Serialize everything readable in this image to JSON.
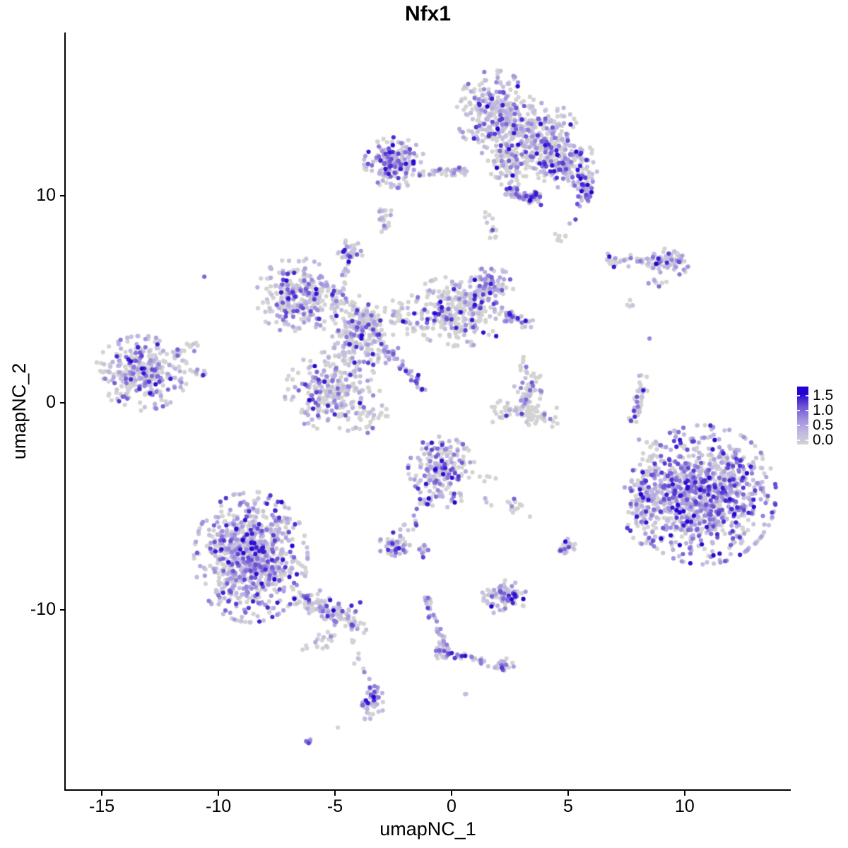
{
  "title": "Nfx1",
  "axes": {
    "x": {
      "label": "umapNC_1",
      "tick_labels": [
        "-15",
        "-10",
        "-5",
        "0",
        "5",
        "10"
      ],
      "tick_values": [
        -15,
        -10,
        -5,
        0,
        5,
        10
      ],
      "range": [
        -16.55,
        14.52
      ]
    },
    "y": {
      "label": "umapNC_2",
      "tick_labels": [
        "10",
        "0",
        "-10"
      ],
      "tick_values": [
        10,
        0,
        -10
      ],
      "range": [
        -18.7,
        17.85
      ]
    }
  },
  "legend": {
    "tick_labels": [
      "1.5",
      "1.0",
      "0.5",
      "0.0"
    ],
    "tick_values": [
      1.5,
      1.0,
      0.5,
      0.0
    ],
    "low_color": "#D3D3D3",
    "high_color": "#2303D3"
  },
  "colors": {
    "background": "#FFFFFF",
    "axis": "#000000",
    "text": "#000000",
    "gradient_stops": [
      {
        "t": 0.0,
        "hex": "#D3D3D3"
      },
      {
        "t": 0.25,
        "hex": "#BFB7E2"
      },
      {
        "t": 0.5,
        "hex": "#9F8EDD"
      },
      {
        "t": 0.75,
        "hex": "#6F52D3"
      },
      {
        "t": 1.0,
        "hex": "#2303D3"
      }
    ]
  },
  "chart_data": {
    "type": "scatter",
    "title": "Nfx1",
    "xlabel": "umapNC_1",
    "ylabel": "umapNC_2",
    "xlim": [
      -16.55,
      14.52
    ],
    "ylim": [
      -18.7,
      17.85
    ],
    "legend_title_values": [
      1.5,
      1.0,
      0.5,
      0.0
    ],
    "expression_max": 1.6,
    "point_radius_px": 3.1,
    "seed": 1337,
    "clusters": [
      {
        "id": "top-main-upper",
        "kind": "blob",
        "n": 270,
        "cx": 1.85,
        "cy": 14.0,
        "rx": 1.36,
        "ry": 1.71,
        "p0": 0.4,
        "hot": 0.45
      },
      {
        "id": "top-main-mid",
        "kind": "blob",
        "n": 270,
        "cx": 3.67,
        "cy": 12.8,
        "rx": 1.52,
        "ry": 1.54,
        "p0": 0.45,
        "hot": 0.45
      },
      {
        "id": "top-main-right",
        "kind": "blob",
        "n": 170,
        "cx": 4.88,
        "cy": 11.6,
        "rx": 1.21,
        "ry": 1.02,
        "p0": 0.4,
        "hot": 0.5
      },
      {
        "id": "top-main-tongue",
        "kind": "blob",
        "n": 90,
        "cx": 2.45,
        "cy": 11.43,
        "rx": 0.76,
        "ry": 1.09,
        "p0": 0.55,
        "hot": 0.38
      },
      {
        "id": "top-trail-down",
        "kind": "streak",
        "n": 12,
        "x1": 1.55,
        "y1": 9.2,
        "x2": 1.85,
        "y2": 7.9,
        "w": 0.25,
        "p0": 0.6,
        "hot": 0.38
      },
      {
        "id": "top-right-edge",
        "kind": "blob",
        "n": 45,
        "cx": 5.73,
        "cy": 10.31,
        "rx": 0.45,
        "ry": 0.75,
        "p0": 0.3,
        "hot": 0.5
      },
      {
        "id": "funnel-streak",
        "kind": "streak",
        "n": 42,
        "x1": 2.24,
        "y1": 10.17,
        "x2": 3.5,
        "y2": 9.82,
        "w": 0.22,
        "p0": 0.05,
        "hot": 0.42
      },
      {
        "id": "funnel-head",
        "kind": "blob",
        "n": 16,
        "cx": 3.55,
        "cy": 9.85,
        "rx": 0.3,
        "ry": 0.4,
        "p0": 0.1,
        "hot": 0.45
      },
      {
        "id": "top-right-trail",
        "kind": "streak",
        "n": 10,
        "x1": 4.58,
        "y1": 7.85,
        "x2": 5.18,
        "y2": 8.7,
        "w": 0.3,
        "p0": 0.6,
        "hot": 0.4
      },
      {
        "id": "top-left-arm-blob",
        "kind": "blob",
        "n": 180,
        "cx": -2.45,
        "cy": 11.6,
        "rx": 1.09,
        "ry": 1.02,
        "p0": 0.3,
        "hot": 0.55
      },
      {
        "id": "top-left-arm-strand",
        "kind": "streak",
        "n": 36,
        "x1": -1.33,
        "y1": 11.16,
        "x2": 0.79,
        "y2": 11.16,
        "w": 0.22,
        "p0": 0.5,
        "hot": 0.42
      },
      {
        "id": "small-blob-under-arm",
        "kind": "blob",
        "n": 22,
        "cx": -2.85,
        "cy": 8.81,
        "rx": 0.36,
        "ry": 0.51,
        "p0": 0.55,
        "hot": 0.38
      },
      {
        "id": "right-streak-cluster",
        "kind": "streak",
        "n": 52,
        "x1": 6.64,
        "y1": 6.89,
        "x2": 9.06,
        "y2": 6.76,
        "w": 0.3,
        "p0": 0.5,
        "hot": 0.45
      },
      {
        "id": "right-streak-clump",
        "kind": "blob",
        "n": 58,
        "cx": 9.48,
        "cy": 6.89,
        "rx": 0.73,
        "ry": 0.61,
        "p0": 0.35,
        "hot": 0.5
      },
      {
        "id": "right-streak-tail",
        "kind": "streak",
        "n": 8,
        "x1": 8.52,
        "y1": 6.04,
        "x2": 9.06,
        "y2": 5.67,
        "w": 0.2,
        "p0": 0.5,
        "hot": 0.4
      },
      {
        "id": "star-upper-left-lobe",
        "kind": "blob",
        "n": 270,
        "cx": -6.64,
        "cy": 5.12,
        "rx": 1.45,
        "ry": 1.57,
        "p0": 0.45,
        "hot": 0.5
      },
      {
        "id": "star-diag-strand",
        "kind": "streak",
        "n": 60,
        "x1": -5.58,
        "y1": 5.87,
        "x2": -3.15,
        "y2": 3.69,
        "w": 0.5,
        "p0": 0.55,
        "hot": 0.42
      },
      {
        "id": "star-top-arm-blob",
        "kind": "blob",
        "n": 28,
        "cx": -4.36,
        "cy": 7.34,
        "rx": 0.48,
        "ry": 0.44,
        "p0": 0.35,
        "hot": 0.45
      },
      {
        "id": "star-top-arm-streak",
        "kind": "streak",
        "n": 22,
        "x1": -4.3,
        "y1": 7.1,
        "x2": -5.12,
        "y2": 4.5,
        "w": 0.18,
        "p0": 0.35,
        "hot": 0.45
      },
      {
        "id": "star-center",
        "kind": "blob",
        "n": 210,
        "cx": -3.91,
        "cy": 3.07,
        "rx": 1.39,
        "ry": 1.43,
        "p0": 0.6,
        "hot": 0.4
      },
      {
        "id": "star-bottom-left-lobe",
        "kind": "blob",
        "n": 270,
        "cx": -5.12,
        "cy": 0.51,
        "rx": 1.7,
        "ry": 1.64,
        "p0": 0.55,
        "hot": 0.42
      },
      {
        "id": "star-right-lobe",
        "kind": "blob",
        "n": 300,
        "cx": 0.33,
        "cy": 4.44,
        "rx": 1.88,
        "ry": 1.43,
        "p0": 0.55,
        "hot": 0.42
      },
      {
        "id": "star-right-bump",
        "kind": "blob",
        "n": 85,
        "cx": 1.7,
        "cy": 5.63,
        "rx": 0.79,
        "ry": 0.78,
        "p0": 0.35,
        "hot": 0.5
      },
      {
        "id": "star-right-tip",
        "kind": "streak",
        "n": 30,
        "x1": 2.3,
        "y1": 4.27,
        "x2": 3.3,
        "y2": 3.82,
        "w": 0.3,
        "p0": 0.2,
        "hot": 0.55
      },
      {
        "id": "star-diag-streak-down",
        "kind": "streak",
        "n": 40,
        "x1": -3.0,
        "y1": 2.83,
        "x2": -1.12,
        "y2": 0.51,
        "w": 0.2,
        "p0": 0.1,
        "hot": 0.45
      },
      {
        "id": "star-sparse-gap",
        "kind": "blob",
        "n": 45,
        "cx": -2.24,
        "cy": 4.1,
        "rx": 0.91,
        "ry": 0.96,
        "p0": 0.85,
        "hot": 0.35
      },
      {
        "id": "star-sparse-below",
        "kind": "blob",
        "n": 25,
        "cx": -3.3,
        "cy": -0.68,
        "rx": 0.76,
        "ry": 0.68,
        "p0": 0.7,
        "hot": 0.35
      },
      {
        "id": "far-left-cluster",
        "kind": "blob",
        "n": 310,
        "cx": -13.3,
        "cy": 1.43,
        "rx": 1.67,
        "ry": 1.5,
        "p0": 0.45,
        "hot": 0.48
      },
      {
        "id": "far-left-arm-upper",
        "kind": "streak",
        "n": 18,
        "x1": -11.94,
        "y1": 2.32,
        "x2": -10.79,
        "y2": 2.87,
        "w": 0.25,
        "p0": 0.5,
        "hot": 0.45
      },
      {
        "id": "far-left-arm-lower",
        "kind": "streak",
        "n": 14,
        "x1": -11.79,
        "y1": 1.37,
        "x2": -10.48,
        "y2": 1.47,
        "w": 0.22,
        "p0": 0.5,
        "hot": 0.45
      },
      {
        "id": "lone-dot-left",
        "kind": "blob",
        "n": 1,
        "cx": -10.58,
        "cy": 6.14,
        "rx": 0.05,
        "ry": 0.05,
        "p0": 0.0,
        "hot": 0.5
      },
      {
        "id": "c-cluster-top",
        "kind": "blob",
        "n": 58,
        "cx": 3.3,
        "cy": 0.68,
        "rx": 0.52,
        "ry": 0.89,
        "p0": 0.6,
        "hot": 0.42
      },
      {
        "id": "c-cluster-arc",
        "kind": "streak",
        "n": 78,
        "x1": 1.94,
        "y1": -0.27,
        "x2": 4.42,
        "y2": -0.75,
        "w": 0.45,
        "p0": 0.75,
        "hot": 0.45
      },
      {
        "id": "c-cluster-sparse-above",
        "kind": "blob",
        "n": 6,
        "cx": 2.97,
        "cy": 1.95,
        "rx": 0.24,
        "ry": 0.48,
        "p0": 0.85,
        "hot": 0.35
      },
      {
        "id": "thin-vertical-streak",
        "kind": "streak",
        "n": 42,
        "x1": 8.27,
        "y1": 1.3,
        "x2": 7.85,
        "y2": -0.96,
        "w": 0.25,
        "p0": 0.6,
        "hot": 0.48
      },
      {
        "id": "thin-streak-dot-below",
        "kind": "blob",
        "n": 1,
        "cx": 8.06,
        "cy": -1.77,
        "rx": 0.05,
        "ry": 0.05,
        "p0": 0.0,
        "hot": 0.55
      },
      {
        "id": "dots-above-streak",
        "kind": "blob",
        "n": 5,
        "cx": 7.7,
        "cy": 4.64,
        "rx": 0.24,
        "ry": 0.34,
        "p0": 0.7,
        "hot": 0.4
      },
      {
        "id": "big-right-cluster",
        "kind": "blob",
        "n": 1000,
        "cx": 10.79,
        "cy": -4.44,
        "rx": 2.61,
        "ry": 2.8,
        "p0": 0.27,
        "hot": 0.62
      },
      {
        "id": "big-right-left-ext",
        "kind": "blob",
        "n": 115,
        "cx": 8.36,
        "cy": -4.88,
        "rx": 0.85,
        "ry": 1.64,
        "p0": 0.55,
        "hot": 0.45
      },
      {
        "id": "big-right-sparse-above",
        "kind": "blob",
        "n": 10,
        "cx": 8.52,
        "cy": -2.39,
        "rx": 0.45,
        "ry": 0.85,
        "p0": 0.7,
        "hot": 0.4
      },
      {
        "id": "center-blob",
        "kind": "blob",
        "n": 215,
        "cx": -0.42,
        "cy": -3.34,
        "rx": 1.21,
        "ry": 1.43,
        "p0": 0.45,
        "hot": 0.5
      },
      {
        "id": "center-blob-tail",
        "kind": "streak",
        "n": 18,
        "x1": -0.94,
        "y1": -4.64,
        "x2": -2.15,
        "y2": -6.42,
        "w": 0.25,
        "p0": 0.5,
        "hot": 0.42
      },
      {
        "id": "center-side-dots",
        "kind": "blob",
        "n": 8,
        "cx": 1.48,
        "cy": -4.1,
        "rx": 0.45,
        "ry": 0.85,
        "p0": 0.75,
        "hot": 0.4
      },
      {
        "id": "small-dense-blob",
        "kind": "blob",
        "n": 46,
        "cx": -2.45,
        "cy": -6.89,
        "rx": 0.55,
        "ry": 0.55,
        "p0": 0.3,
        "hot": 0.55
      },
      {
        "id": "small-dense-blob-2",
        "kind": "blob",
        "n": 10,
        "cx": -1.15,
        "cy": -7.2,
        "rx": 0.27,
        "ry": 0.31,
        "p0": 0.4,
        "hot": 0.45
      },
      {
        "id": "grey-pair-mid",
        "kind": "blob",
        "n": 12,
        "cx": 2.67,
        "cy": -4.98,
        "rx": 0.39,
        "ry": 0.31,
        "p0": 0.75,
        "hot": 0.5
      },
      {
        "id": "grey-single-mid",
        "kind": "blob",
        "n": 1,
        "cx": 3.42,
        "cy": -5.49,
        "rx": 0.05,
        "ry": 0.05,
        "p0": 1.0,
        "hot": 0.4
      },
      {
        "id": "small-blob-right-mid",
        "kind": "blob",
        "n": 28,
        "cx": 4.88,
        "cy": -6.96,
        "rx": 0.36,
        "ry": 0.48,
        "p0": 0.45,
        "hot": 0.5
      },
      {
        "id": "bottom-left-cluster",
        "kind": "blob",
        "n": 850,
        "cx": -8.61,
        "cy": -7.44,
        "rx": 2.03,
        "ry": 2.63,
        "p0": 0.38,
        "hot": 0.42
      },
      {
        "id": "bottom-left-tail",
        "kind": "streak",
        "n": 130,
        "x1": -6.39,
        "y1": -9.39,
        "x2": -4.06,
        "y2": -10.65,
        "w": 0.55,
        "p0": 0.5,
        "hot": 0.45
      },
      {
        "id": "bottom-left-sparse",
        "kind": "blob",
        "n": 20,
        "cx": -5.58,
        "cy": -11.43,
        "rx": 0.91,
        "ry": 0.68,
        "p0": 0.75,
        "hot": 0.35
      },
      {
        "id": "bottom-left-trail",
        "kind": "streak",
        "n": 8,
        "x1": -4.3,
        "y1": -11.13,
        "x2": -3.82,
        "y2": -13.04,
        "w": 0.15,
        "p0": 0.6,
        "hot": 0.4
      },
      {
        "id": "bottom-mid-right-blob",
        "kind": "blob",
        "n": 88,
        "cx": 2.21,
        "cy": -9.39,
        "rx": 0.85,
        "ry": 0.68,
        "p0": 0.4,
        "hot": 0.5
      },
      {
        "id": "y-chain-vertical",
        "kind": "streak",
        "n": 32,
        "x1": -1.12,
        "y1": -9.32,
        "x2": -0.33,
        "y2": -11.81,
        "w": 0.2,
        "p0": 0.35,
        "hot": 0.5
      },
      {
        "id": "y-chain-elbow",
        "kind": "blob",
        "n": 28,
        "cx": -0.42,
        "cy": -11.98,
        "rx": 0.36,
        "ry": 0.48,
        "p0": 0.3,
        "hot": 0.5
      },
      {
        "id": "y-chain-branch",
        "kind": "streak",
        "n": 22,
        "x1": 0.03,
        "y1": -12.15,
        "x2": 1.85,
        "y2": -12.63,
        "w": 0.2,
        "p0": 0.55,
        "hot": 0.45
      },
      {
        "id": "y-chain-end-clump",
        "kind": "blob",
        "n": 22,
        "cx": 2.24,
        "cy": -12.66,
        "rx": 0.36,
        "ry": 0.34,
        "p0": 0.35,
        "hot": 0.5
      },
      {
        "id": "dot-pair-bottom",
        "kind": "blob",
        "n": 2,
        "cx": 0.55,
        "cy": -14.06,
        "rx": 0.08,
        "ry": 0.08,
        "p0": 0.0,
        "hot": 0.6
      },
      {
        "id": "bottom-vertical-blob",
        "kind": "blob",
        "n": 56,
        "cx": -3.39,
        "cy": -14.33,
        "rx": 0.42,
        "ry": 1.02,
        "p0": 0.35,
        "hot": 0.52
      },
      {
        "id": "dot-above-bottom-blob",
        "kind": "blob",
        "n": 1,
        "cx": -3.73,
        "cy": -12.97,
        "rx": 0.05,
        "ry": 0.05,
        "p0": 0.0,
        "hot": 0.5
      },
      {
        "id": "grey-dot-bottom",
        "kind": "blob",
        "n": 1,
        "cx": -4.82,
        "cy": -15.7,
        "rx": 0.05,
        "ry": 0.05,
        "p0": 1.0,
        "hot": 0.4
      },
      {
        "id": "tiny-streak-bottom",
        "kind": "streak",
        "n": 7,
        "x1": -6.24,
        "y1": -16.38,
        "x2": -5.79,
        "y2": -16.04,
        "w": 0.12,
        "p0": 0.15,
        "hot": 0.45
      },
      {
        "id": "single-dot-right",
        "kind": "blob",
        "n": 1,
        "cx": 8.45,
        "cy": 3.07,
        "rx": 0.05,
        "ry": 0.05,
        "p0": 0.0,
        "hot": 0.5
      }
    ]
  }
}
